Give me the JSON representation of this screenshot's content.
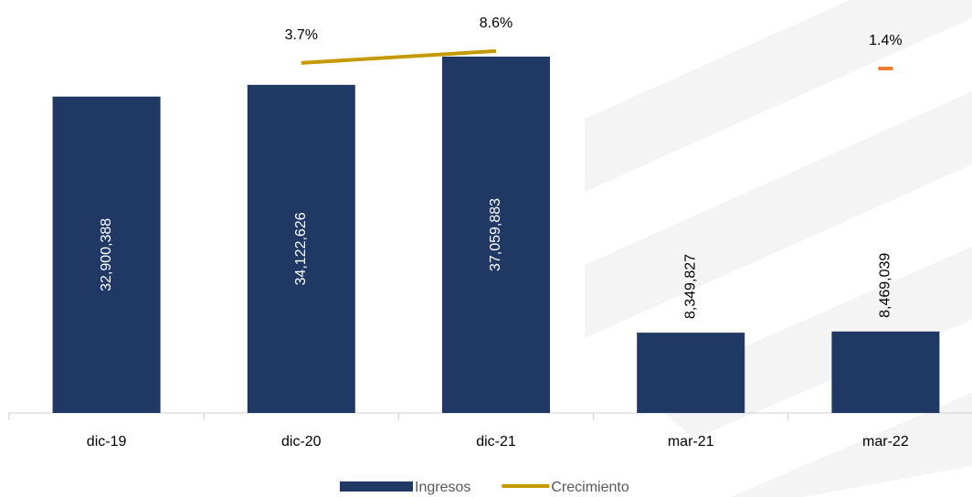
{
  "chart_data": {
    "type": "bar",
    "categories": [
      "dic-19",
      "dic-20",
      "dic-21",
      "mar-21",
      "mar-22"
    ],
    "ylim": [
      0,
      40000000
    ],
    "y2lim": [
      -141,
      18
    ],
    "series": [
      {
        "name": "Ingresos",
        "type": "bar",
        "color": "#203864",
        "values": [
          32900388,
          34122626,
          37059883,
          8349827,
          8469039
        ],
        "value_labels": [
          "32,900,388",
          "34,122,626",
          "37,059,883",
          "8,349,827",
          "8,469,039"
        ]
      },
      {
        "name": "Crecimiento",
        "type": "line",
        "axis": "y2",
        "color": "#c49a00",
        "isolated_color": "#ed7d31",
        "values": [
          null,
          3.7,
          8.6,
          null,
          1.4
        ],
        "value_labels": [
          null,
          "3.7%",
          "8.6%",
          null,
          "1.4%"
        ]
      }
    ],
    "legend": "bottom"
  }
}
